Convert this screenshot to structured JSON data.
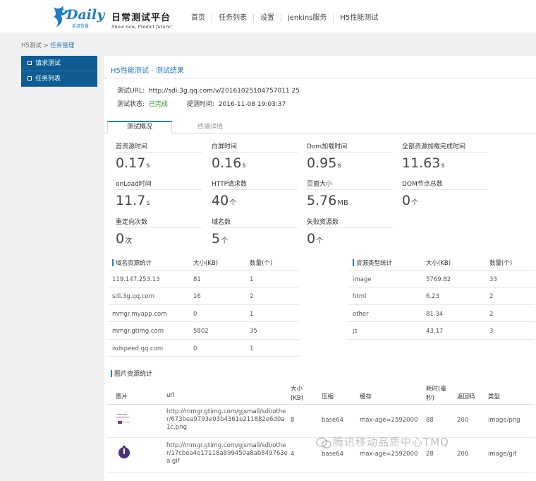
{
  "header": {
    "logo_word": "Daily",
    "logo_sub": "手游質量",
    "brand_title": "日常测试平台",
    "brand_sub": "Show now, Predict future!",
    "nav": [
      "首页",
      "任务列表",
      "设置",
      "jenkins服务",
      "H5性能测试"
    ]
  },
  "breadcrumb": {
    "parent": "H5测试",
    "sep": " > ",
    "current": "任务管理"
  },
  "sidebar": {
    "items": [
      {
        "label": "请求测试"
      },
      {
        "label": "任务列表"
      }
    ]
  },
  "main": {
    "title": "H5性能测试 - 测试结果",
    "url_label": "测试URL:",
    "url_value": "http://sdi.3g.qq.com/v/20161025104757011 25",
    "status_label": "测试状态:",
    "status_value": "已完成",
    "submit_label": "提测时间:",
    "submit_value": "2016-11-08 19:03:37",
    "tabs": [
      "测试概况",
      "终端详情"
    ]
  },
  "metrics": [
    {
      "label": "首资源时间",
      "value": "0.17",
      "unit": "s"
    },
    {
      "label": "白屏时间",
      "value": "0.16",
      "unit": "s"
    },
    {
      "label": "Dom加载时间",
      "value": "0.95",
      "unit": "s"
    },
    {
      "label": "全部资源加载完成时间",
      "value": "11.63",
      "unit": "s"
    },
    {
      "label": "onLoad时间",
      "value": "11.7",
      "unit": "s"
    },
    {
      "label": "HTTP请求数",
      "value": "40",
      "unit": "个"
    },
    {
      "label": "页面大小",
      "value": "5.76",
      "unit": "MB"
    },
    {
      "label": "DOM节点总数",
      "value": "0",
      "unit": "个"
    },
    {
      "label": "重定向次数",
      "value": "0",
      "unit": "次"
    },
    {
      "label": "域名数",
      "value": "5",
      "unit": "个"
    },
    {
      "label": "失败资源数",
      "value": "0",
      "unit": "个"
    }
  ],
  "domain_table": {
    "headers": [
      "域名资源统计",
      "大小(KB)",
      "数量(个)"
    ],
    "rows": [
      [
        "119.147.253.13",
        "81",
        "1"
      ],
      [
        "sdi.3g.qq.com",
        "16",
        "2"
      ],
      [
        "mmgr.myapp.com",
        "0",
        "1"
      ],
      [
        "mmgr.gtimg.com",
        "5802",
        "35"
      ],
      [
        "isdspeed.qq.com",
        "0",
        "1"
      ]
    ]
  },
  "type_table": {
    "headers": [
      "资源类型统计",
      "大小(KB)",
      "数量(个)"
    ],
    "rows": [
      [
        "image",
        "5769.82",
        "33"
      ],
      [
        "html",
        "6.23",
        "2"
      ],
      [
        "other",
        "81.34",
        "2"
      ],
      [
        "js",
        "43.17",
        "3"
      ]
    ]
  },
  "image_table": {
    "title": "图片资源统计",
    "headers": [
      "图片",
      "url",
      "大小(KB)",
      "压缩",
      "缓存",
      "耗时(毫秒)",
      "返回码",
      "类型"
    ],
    "rows": [
      {
        "url": "http://mmgr.gtimg.com/gjsmall/sdi/other/673bea9793e03b4361e211882e6d0a1c.png",
        "size": "8",
        "compress": "base64",
        "cache": "max-age=2592000",
        "time": "88",
        "code": "200",
        "type": "image/png"
      },
      {
        "url": "http://mmgr.gtimg.com/gjsmall/sdi/other/17cbea4e17118a899450a8ab849763ea.gif",
        "size": "4",
        "compress": "base64",
        "cache": "max-age=2592000",
        "time": "28",
        "code": "200",
        "type": "image/gif"
      }
    ]
  },
  "watermark": "腾讯移动品质中心TMQ",
  "colors": {
    "accent": "#1e7cc4",
    "sidebar": "#0f5b94",
    "success": "#2a9a2a"
  }
}
